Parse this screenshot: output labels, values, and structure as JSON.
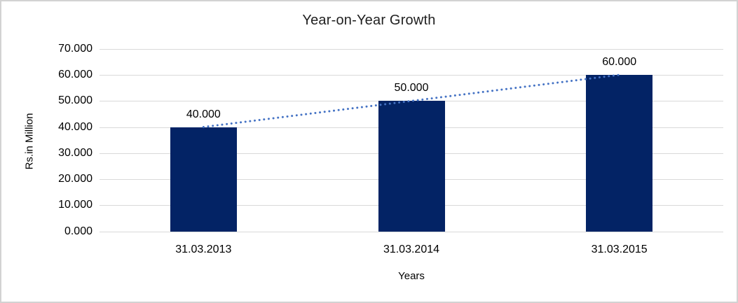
{
  "chart_data": {
    "type": "bar",
    "title": "Year-on-Year Growth",
    "xlabel": "Years",
    "ylabel": "Rs.in Million",
    "categories": [
      "31.03.2013",
      "31.03.2014",
      "31.03.2015"
    ],
    "values": [
      40,
      50,
      60
    ],
    "value_labels": [
      "40.000",
      "50.000",
      "60.000"
    ],
    "ylim": [
      0,
      70
    ],
    "y_ticks": [
      {
        "value": 70,
        "label": "70.000"
      },
      {
        "value": 60,
        "label": "60.000"
      },
      {
        "value": 50,
        "label": "50.000"
      },
      {
        "value": 40,
        "label": "40.000"
      },
      {
        "value": 30,
        "label": "30.000"
      },
      {
        "value": 20,
        "label": "20.000"
      },
      {
        "value": 10,
        "label": "10.000"
      },
      {
        "value": 0,
        "label": "0.000"
      }
    ],
    "grid": true,
    "legend": "none",
    "trendline": {
      "type": "linear",
      "style": "dotted",
      "start_value": 40,
      "end_value": 60
    },
    "colors": {
      "bar": "#032365",
      "trendline": "#4472C4",
      "gridline": "#D9D9D9",
      "text": "#000000",
      "frame_border": "#D2D2D2",
      "background": "#FFFFFF"
    }
  }
}
